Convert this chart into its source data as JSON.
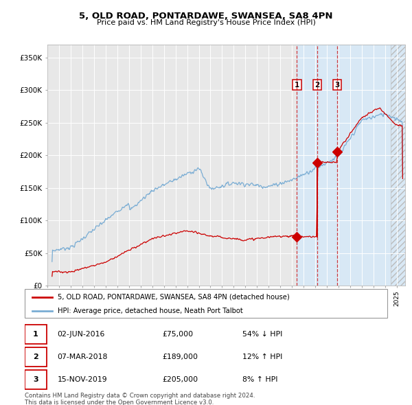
{
  "title": "5, OLD ROAD, PONTARDAWE, SWANSEA, SA8 4PN",
  "subtitle": "Price paid vs. HM Land Registry's House Price Index (HPI)",
  "hpi_color": "#7aadd4",
  "price_color": "#cc0000",
  "bg_color": "#ffffff",
  "plot_bg_color": "#e8e8e8",
  "highlight_bg": "#d8e8f5",
  "transactions": [
    {
      "date": 2016.42,
      "price": 75000,
      "label": "1"
    },
    {
      "date": 2018.17,
      "price": 189000,
      "label": "2"
    },
    {
      "date": 2019.87,
      "price": 205000,
      "label": "3"
    }
  ],
  "table_rows": [
    {
      "num": "1",
      "date": "02-JUN-2016",
      "price": "£75,000",
      "hpi": "54% ↓ HPI"
    },
    {
      "num": "2",
      "date": "07-MAR-2018",
      "price": "£189,000",
      "hpi": "12% ↑ HPI"
    },
    {
      "num": "3",
      "date": "15-NOV-2019",
      "price": "£205,000",
      "hpi": "8% ↑ HPI"
    }
  ],
  "legend": [
    {
      "label": "5, OLD ROAD, PONTARDAWE, SWANSEA, SA8 4PN (detached house)",
      "color": "#cc0000"
    },
    {
      "label": "HPI: Average price, detached house, Neath Port Talbot",
      "color": "#7aadd4"
    }
  ],
  "footer": [
    "Contains HM Land Registry data © Crown copyright and database right 2024.",
    "This data is licensed under the Open Government Licence v3.0."
  ],
  "ylim": [
    0,
    370000
  ],
  "xmin": 1995.3,
  "xmax": 2025.7,
  "highlight_start": 2016.42,
  "hatch_start": 2024.5
}
